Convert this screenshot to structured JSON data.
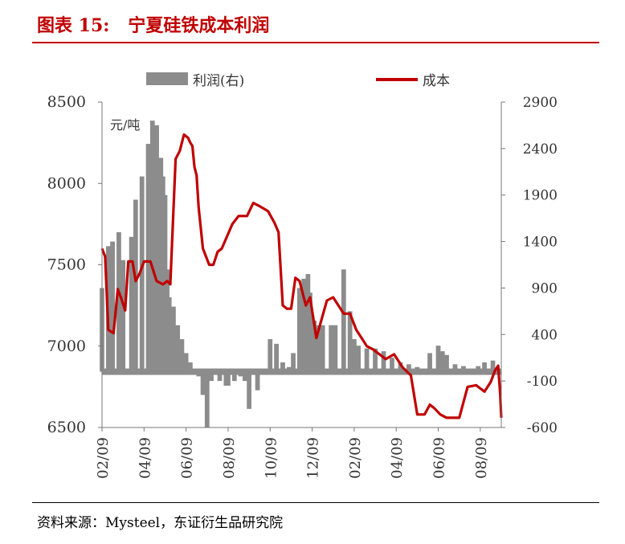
{
  "header": {
    "title": "图表 15:   宁夏硅铁成本利润"
  },
  "footer": {
    "source": "资料来源：Mysteel，东证衍生品研究院"
  },
  "chart_data": {
    "type": "bar+line",
    "title": "宁夏硅铁成本利润",
    "unit_label": "元/吨",
    "legend_position": "top",
    "x_tick_labels": [
      "02/09",
      "04/09",
      "06/09",
      "08/09",
      "10/09",
      "12/09",
      "02/09",
      "04/09",
      "06/09",
      "08/09"
    ],
    "x_tick_positions": [
      0,
      2,
      4,
      6,
      8,
      10,
      12,
      14,
      16,
      18
    ],
    "x_range": [
      0,
      19
    ],
    "left_axis": {
      "ticks": [
        6500,
        7000,
        7500,
        8000,
        8500
      ],
      "range": [
        6500,
        8500
      ]
    },
    "right_axis": {
      "ticks": [
        -600,
        -100,
        400,
        900,
        1400,
        1900,
        2400,
        2900
      ],
      "range": [
        -600,
        2900
      ]
    },
    "series": [
      {
        "name": "利润(右)",
        "type": "bar",
        "axis": "right",
        "color": "#8c8c8c",
        "x": [
          0.0,
          0.3,
          0.5,
          0.8,
          1.0,
          1.4,
          1.6,
          1.9,
          2.2,
          2.4,
          2.6,
          2.8,
          2.9,
          3.0,
          3.1,
          3.2,
          3.4,
          3.6,
          3.8,
          4.0,
          4.2,
          4.4,
          4.6,
          4.8,
          5.0,
          5.2,
          5.6,
          5.7,
          5.9,
          6.0,
          6.3,
          6.6,
          6.8,
          7.0,
          7.4,
          7.7,
          8.0,
          8.3,
          8.6,
          8.9,
          9.1,
          9.4,
          9.6,
          9.8,
          9.9,
          10.0,
          10.1,
          10.3,
          10.5,
          10.9,
          11.1,
          11.5,
          11.8,
          12.0,
          12.2,
          12.6,
          13.0,
          13.4,
          13.8,
          14.2,
          14.6,
          15.0,
          15.3,
          15.6,
          16.0,
          16.2,
          16.4,
          16.8,
          17.2,
          17.6,
          17.9,
          18.2,
          18.6,
          18.9
        ],
        "values": [
          900,
          1350,
          1400,
          1500,
          1200,
          1450,
          1850,
          2100,
          2450,
          2700,
          2650,
          2300,
          2100,
          1900,
          1100,
          800,
          700,
          500,
          350,
          200,
          100,
          0,
          -50,
          -250,
          -600,
          -100,
          -100,
          0,
          -150,
          -150,
          -100,
          -50,
          -100,
          -400,
          -200,
          -20,
          350,
          300,
          100,
          50,
          200,
          900,
          1000,
          1050,
          850,
          600,
          550,
          500,
          500,
          500,
          500,
          1100,
          650,
          350,
          280,
          250,
          250,
          220,
          150,
          100,
          80,
          50,
          -20,
          200,
          280,
          220,
          180,
          80,
          60,
          30,
          60,
          100,
          120,
          -20
        ],
        "value_source": "estimated from chart"
      },
      {
        "name": "成本",
        "type": "line",
        "axis": "left",
        "color": "#c00000",
        "x": [
          0.0,
          0.15,
          0.3,
          0.55,
          0.75,
          0.9,
          1.1,
          1.25,
          1.45,
          1.6,
          1.8,
          2.0,
          2.3,
          2.6,
          2.9,
          3.1,
          3.25,
          3.5,
          3.7,
          3.9,
          4.1,
          4.2,
          4.3,
          4.4,
          4.5,
          4.6,
          4.8,
          5.1,
          5.3,
          5.5,
          5.7,
          6.2,
          6.5,
          6.9,
          7.2,
          7.5,
          7.9,
          8.2,
          8.4,
          8.6,
          8.8,
          9.0,
          9.2,
          9.4,
          9.6,
          9.7,
          9.9,
          10.2,
          10.7,
          11.0,
          11.5,
          11.8,
          12.1,
          12.35,
          12.6,
          12.9,
          13.2,
          13.5,
          13.9,
          14.3,
          14.7,
          15.0,
          15.35,
          15.6,
          15.8,
          16.1,
          16.4,
          16.7,
          17.0,
          17.4,
          17.8,
          18.2,
          18.5,
          18.7,
          18.85,
          18.95,
          19.0
        ],
        "values": [
          7600,
          7550,
          7100,
          7080,
          7350,
          7300,
          7220,
          7520,
          7520,
          7400,
          7450,
          7520,
          7520,
          7400,
          7380,
          7400,
          7380,
          8150,
          8200,
          8300,
          8280,
          8250,
          8230,
          8100,
          8050,
          7850,
          7600,
          7500,
          7500,
          7580,
          7600,
          7750,
          7800,
          7800,
          7880,
          7860,
          7830,
          7760,
          7700,
          7250,
          7230,
          7230,
          7420,
          7400,
          7300,
          7250,
          7300,
          7050,
          7280,
          7300,
          7200,
          7200,
          7100,
          7050,
          7000,
          6980,
          6950,
          6920,
          6950,
          6870,
          6820,
          6580,
          6580,
          6640,
          6620,
          6580,
          6560,
          6560,
          6560,
          6750,
          6760,
          6720,
          6780,
          6850,
          6880,
          6700,
          6560
        ],
        "value_source": "estimated from chart"
      }
    ]
  }
}
